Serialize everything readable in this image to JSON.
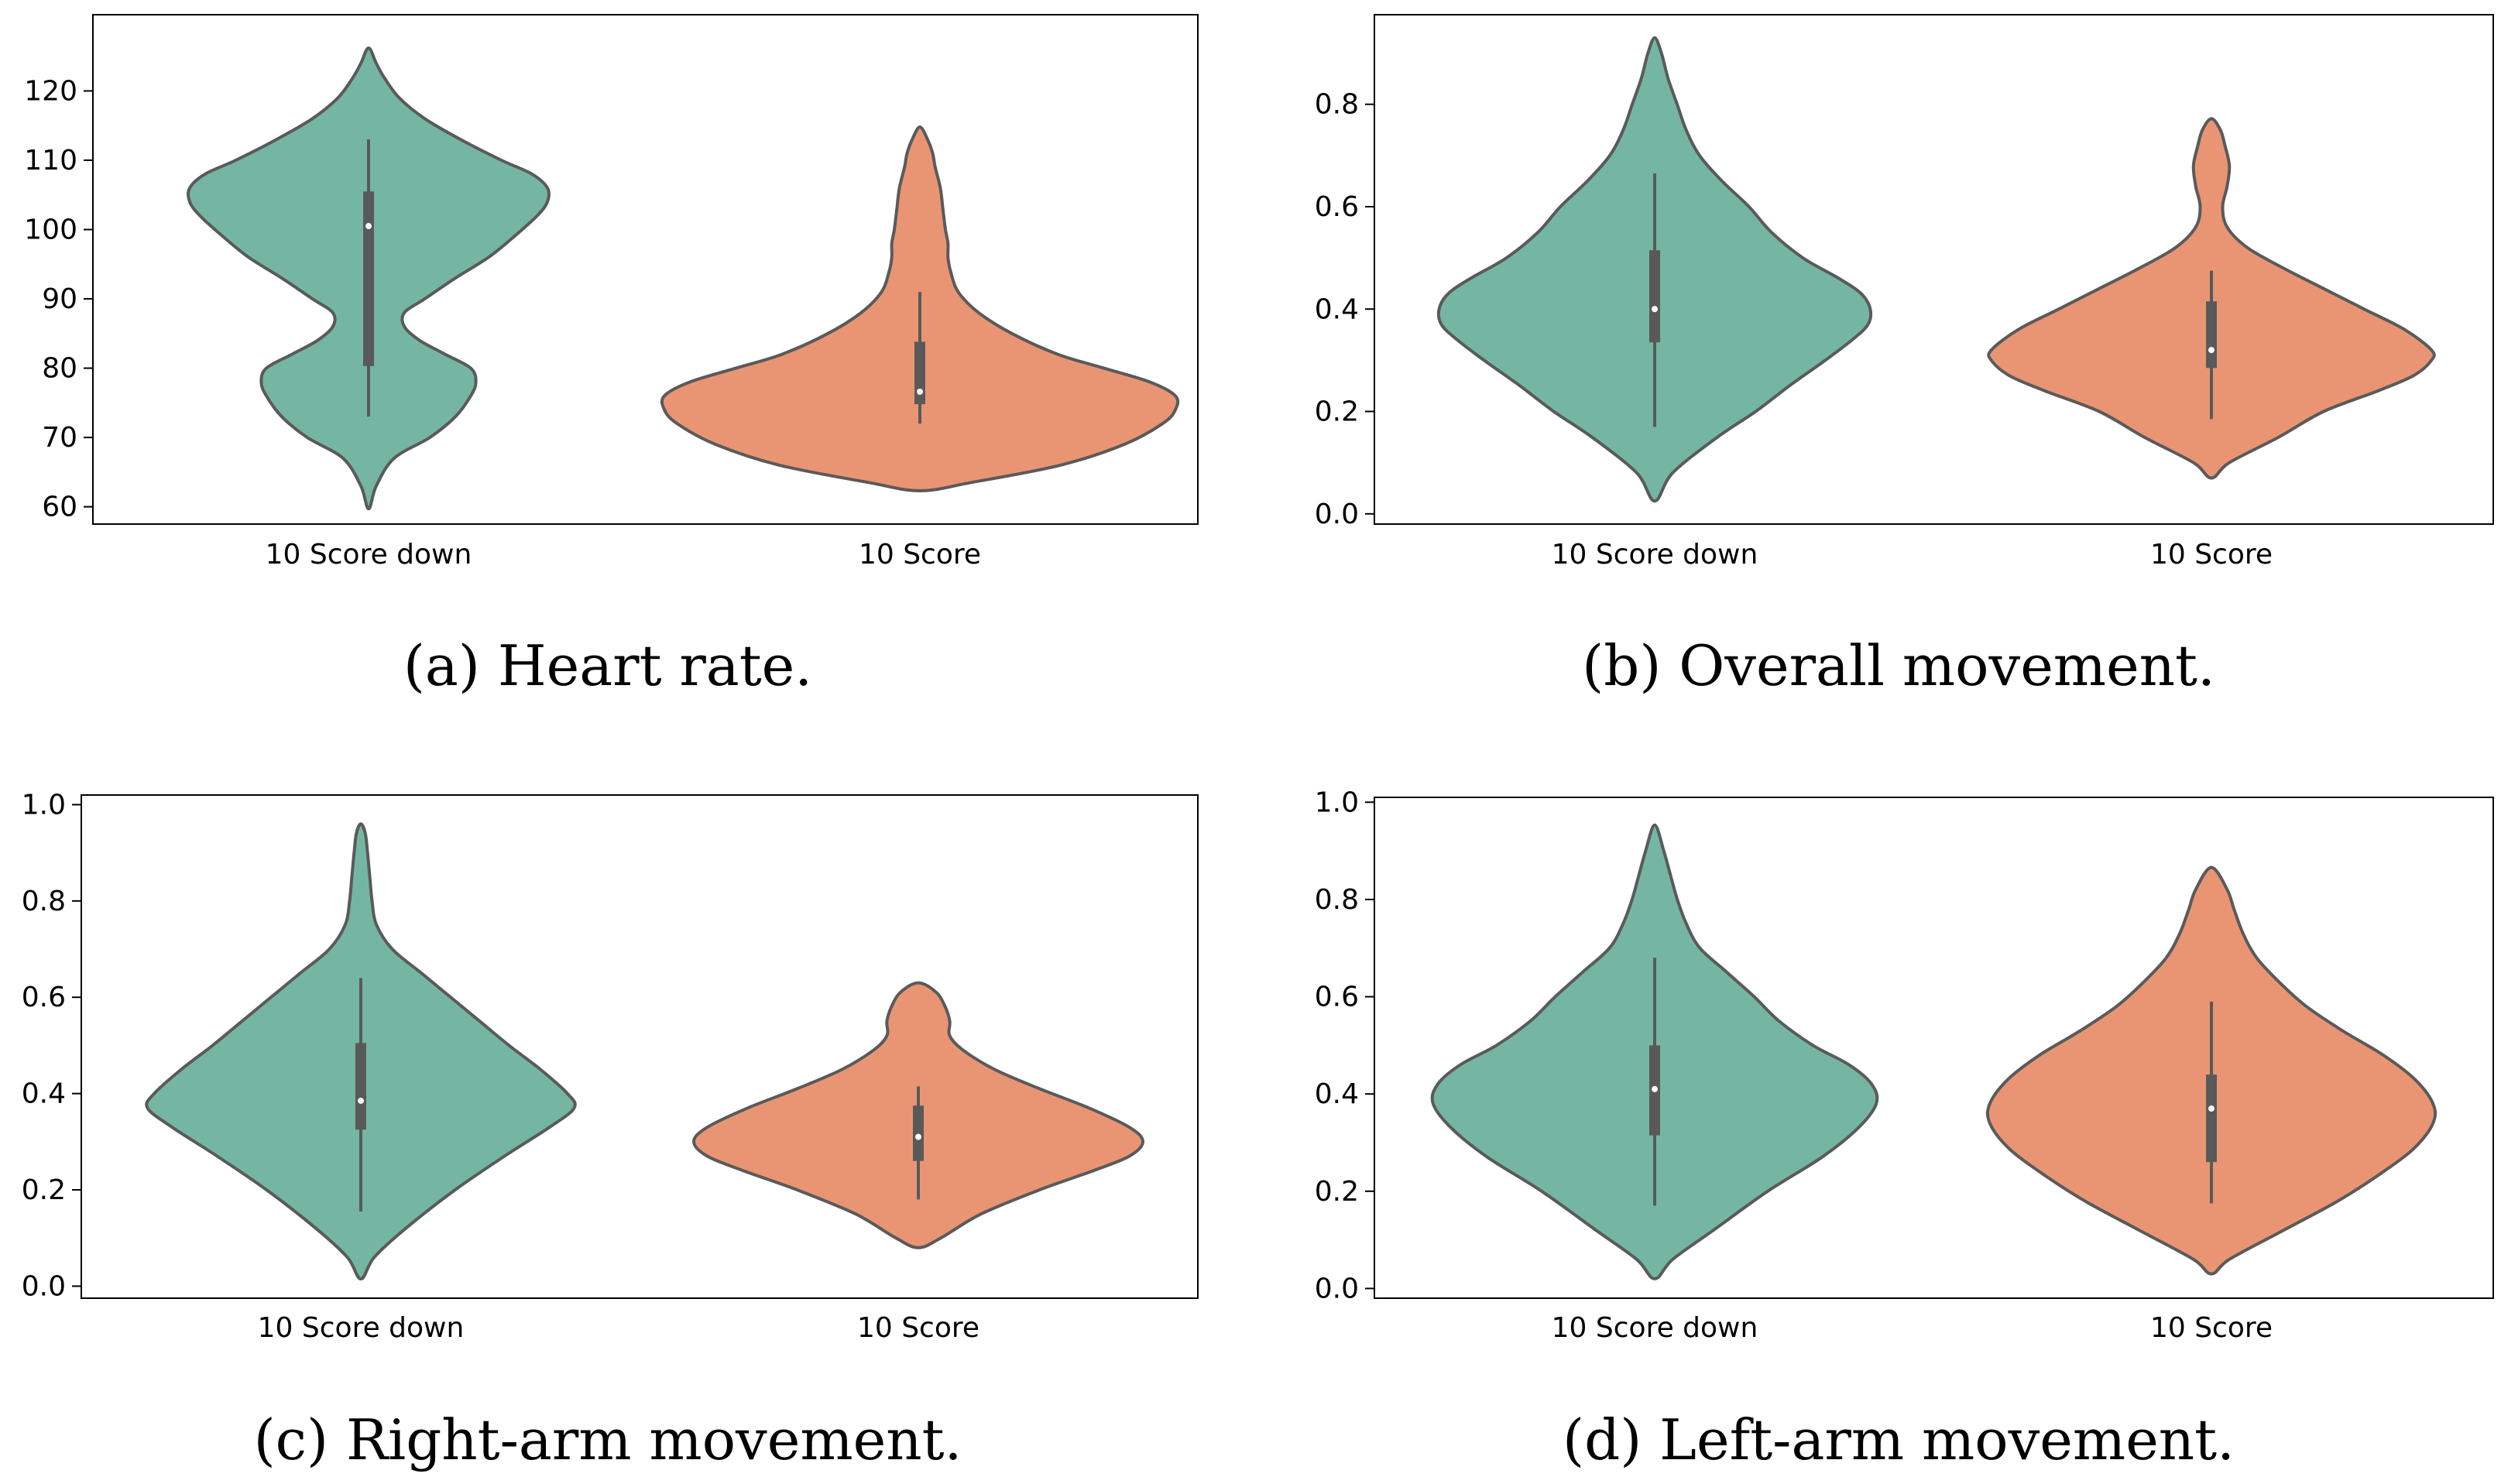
{
  "colors": {
    "green": "#74b6a2",
    "orange": "#e99574",
    "outline": "#5a5a5a",
    "box": "#595959"
  },
  "chart_data": [
    {
      "type": "violin",
      "caption_letter": "a",
      "caption_text": "Heart rate.",
      "categories": [
        "10 Score down",
        "10 Score"
      ],
      "ylim": [
        57.5,
        131
      ],
      "yticks": [
        60,
        70,
        80,
        90,
        100,
        110,
        120
      ],
      "ytick_labels": [
        "60",
        "70",
        "80",
        "90",
        "100",
        "110",
        "120"
      ],
      "violins": [
        {
          "name": "10 Score down",
          "color": "#74b6a2",
          "profile": [
            [
              59.7,
              0
            ],
            [
              63,
              0.03
            ],
            [
              67,
              0.1
            ],
            [
              70,
              0.24
            ],
            [
              73,
              0.34
            ],
            [
              76,
              0.4
            ],
            [
              78,
              0.42
            ],
            [
              80,
              0.4
            ],
            [
              82,
              0.3
            ],
            [
              84,
              0.2
            ],
            [
              86,
              0.14
            ],
            [
              88,
              0.14
            ],
            [
              90,
              0.22
            ],
            [
              93,
              0.34
            ],
            [
              96,
              0.47
            ],
            [
              99,
              0.57
            ],
            [
              102,
              0.66
            ],
            [
              104,
              0.7
            ],
            [
              106,
              0.7
            ],
            [
              108,
              0.64
            ],
            [
              110,
              0.52
            ],
            [
              113,
              0.36
            ],
            [
              116,
              0.22
            ],
            [
              119,
              0.12
            ],
            [
              122,
              0.06
            ],
            [
              124,
              0.03
            ],
            [
              126.2,
              0
            ]
          ],
          "q1": 80.3,
          "median": 100.5,
          "q3": 105.5,
          "whisker_low": 73,
          "whisker_high": 113
        },
        {
          "name": "10 Score",
          "color": "#e99574",
          "profile": [
            [
              62.3,
              0
            ],
            [
              63.5,
              0.2
            ],
            [
              66,
              0.55
            ],
            [
              69,
              0.8
            ],
            [
              72,
              0.95
            ],
            [
              74,
              1.0
            ],
            [
              76,
              1.0
            ],
            [
              78,
              0.9
            ],
            [
              80,
              0.72
            ],
            [
              82,
              0.54
            ],
            [
              85,
              0.36
            ],
            [
              88,
              0.23
            ],
            [
              91,
              0.15
            ],
            [
              94,
              0.12
            ],
            [
              96,
              0.11
            ],
            [
              98,
              0.11
            ],
            [
              100,
              0.1
            ],
            [
              103,
              0.09
            ],
            [
              106,
              0.08
            ],
            [
              109,
              0.06
            ],
            [
              111,
              0.05
            ],
            [
              113,
              0.03
            ],
            [
              114.8,
              0
            ]
          ],
          "q1": 74.8,
          "median": 76.6,
          "q3": 83.8,
          "whisker_low": 72,
          "whisker_high": 91
        }
      ]
    },
    {
      "type": "violin",
      "caption_letter": "b",
      "caption_text": "Overall movement.",
      "categories": [
        "10 Score down",
        "10 Score"
      ],
      "ylim": [
        -0.02,
        0.975
      ],
      "yticks": [
        0.0,
        0.2,
        0.4,
        0.6,
        0.8
      ],
      "ytick_labels": [
        "0.0",
        "0.2",
        "0.4",
        "0.6",
        "0.8"
      ],
      "violins": [
        {
          "name": "10 Score down",
          "color": "#74b6a2",
          "profile": [
            [
              0.025,
              0
            ],
            [
              0.08,
              0.08
            ],
            [
              0.15,
              0.28
            ],
            [
              0.2,
              0.45
            ],
            [
              0.25,
              0.6
            ],
            [
              0.3,
              0.76
            ],
            [
              0.34,
              0.88
            ],
            [
              0.37,
              0.95
            ],
            [
              0.4,
              0.96
            ],
            [
              0.43,
              0.92
            ],
            [
              0.46,
              0.82
            ],
            [
              0.5,
              0.66
            ],
            [
              0.55,
              0.52
            ],
            [
              0.6,
              0.42
            ],
            [
              0.65,
              0.3
            ],
            [
              0.7,
              0.2
            ],
            [
              0.75,
              0.14
            ],
            [
              0.8,
              0.1
            ],
            [
              0.85,
              0.06
            ],
            [
              0.9,
              0.03
            ],
            [
              0.93,
              0
            ]
          ],
          "q1": 0.335,
          "median": 0.4,
          "q3": 0.515,
          "whisker_low": 0.17,
          "whisker_high": 0.665
        },
        {
          "name": "10 Score",
          "color": "#e99574",
          "profile": [
            [
              0.07,
              0
            ],
            [
              0.1,
              0.08
            ],
            [
              0.15,
              0.3
            ],
            [
              0.2,
              0.5
            ],
            [
              0.24,
              0.74
            ],
            [
              0.27,
              0.9
            ],
            [
              0.3,
              0.98
            ],
            [
              0.32,
              0.98
            ],
            [
              0.36,
              0.86
            ],
            [
              0.4,
              0.68
            ],
            [
              0.44,
              0.5
            ],
            [
              0.48,
              0.32
            ],
            [
              0.52,
              0.16
            ],
            [
              0.56,
              0.07
            ],
            [
              0.6,
              0.05
            ],
            [
              0.64,
              0.07
            ],
            [
              0.68,
              0.08
            ],
            [
              0.72,
              0.06
            ],
            [
              0.75,
              0.04
            ],
            [
              0.772,
              0
            ]
          ],
          "q1": 0.285,
          "median": 0.32,
          "q3": 0.415,
          "whisker_low": 0.185,
          "whisker_high": 0.475
        }
      ]
    },
    {
      "type": "violin",
      "caption_letter": "c",
      "caption_text": "Right-arm movement.",
      "categories": [
        "10 Score down",
        "10 Score"
      ],
      "ylim": [
        -0.025,
        1.02
      ],
      "yticks": [
        0.0,
        0.2,
        0.4,
        0.6,
        0.8,
        1.0
      ],
      "ytick_labels": [
        "0.0",
        "0.2",
        "0.4",
        "0.6",
        "0.8",
        "1.0"
      ],
      "violins": [
        {
          "name": "10 Score down",
          "color": "#74b6a2",
          "profile": [
            [
              0.015,
              0
            ],
            [
              0.06,
              0.06
            ],
            [
              0.12,
              0.2
            ],
            [
              0.2,
              0.42
            ],
            [
              0.27,
              0.64
            ],
            [
              0.33,
              0.84
            ],
            [
              0.37,
              0.95
            ],
            [
              0.4,
              0.92
            ],
            [
              0.45,
              0.8
            ],
            [
              0.5,
              0.66
            ],
            [
              0.55,
              0.53
            ],
            [
              0.6,
              0.4
            ],
            [
              0.65,
              0.27
            ],
            [
              0.7,
              0.14
            ],
            [
              0.75,
              0.07
            ],
            [
              0.8,
              0.05
            ],
            [
              0.85,
              0.04
            ],
            [
              0.9,
              0.03
            ],
            [
              0.94,
              0.02
            ],
            [
              0.96,
              0
            ]
          ],
          "q1": 0.325,
          "median": 0.385,
          "q3": 0.505,
          "whisker_low": 0.155,
          "whisker_high": 0.64
        },
        {
          "name": "10 Score",
          "color": "#e99574",
          "profile": [
            [
              0.08,
              0
            ],
            [
              0.1,
              0.1
            ],
            [
              0.15,
              0.28
            ],
            [
              0.2,
              0.54
            ],
            [
              0.24,
              0.78
            ],
            [
              0.27,
              0.94
            ],
            [
              0.3,
              1.0
            ],
            [
              0.33,
              0.94
            ],
            [
              0.37,
              0.76
            ],
            [
              0.41,
              0.54
            ],
            [
              0.45,
              0.34
            ],
            [
              0.49,
              0.2
            ],
            [
              0.52,
              0.14
            ],
            [
              0.55,
              0.14
            ],
            [
              0.58,
              0.12
            ],
            [
              0.61,
              0.08
            ],
            [
              0.63,
              0
            ]
          ],
          "q1": 0.26,
          "median": 0.31,
          "q3": 0.375,
          "whisker_low": 0.18,
          "whisker_high": 0.415
        }
      ]
    },
    {
      "type": "violin",
      "caption_letter": "d",
      "caption_text": "Left-arm movement.",
      "categories": [
        "10 Score down",
        "10 Score"
      ],
      "ylim": [
        -0.02,
        1.01
      ],
      "yticks": [
        0.0,
        0.2,
        0.4,
        0.6,
        0.8,
        1.0
      ],
      "ytick_labels": [
        "0.0",
        "0.2",
        "0.4",
        "0.6",
        "0.8",
        "1.0"
      ],
      "violins": [
        {
          "name": "10 Score down",
          "color": "#74b6a2",
          "profile": [
            [
              0.02,
              0
            ],
            [
              0.06,
              0.08
            ],
            [
              0.12,
              0.26
            ],
            [
              0.2,
              0.5
            ],
            [
              0.27,
              0.74
            ],
            [
              0.33,
              0.9
            ],
            [
              0.38,
              0.98
            ],
            [
              0.42,
              0.96
            ],
            [
              0.46,
              0.86
            ],
            [
              0.5,
              0.7
            ],
            [
              0.55,
              0.55
            ],
            [
              0.6,
              0.44
            ],
            [
              0.65,
              0.32
            ],
            [
              0.7,
              0.2
            ],
            [
              0.75,
              0.14
            ],
            [
              0.8,
              0.1
            ],
            [
              0.85,
              0.07
            ],
            [
              0.9,
              0.04
            ],
            [
              0.953,
              0
            ]
          ],
          "q1": 0.315,
          "median": 0.41,
          "q3": 0.5,
          "whisker_low": 0.17,
          "whisker_high": 0.68
        },
        {
          "name": "10 Score",
          "color": "#e99574",
          "profile": [
            [
              0.03,
              0
            ],
            [
              0.06,
              0.08
            ],
            [
              0.12,
              0.32
            ],
            [
              0.18,
              0.56
            ],
            [
              0.24,
              0.76
            ],
            [
              0.29,
              0.9
            ],
            [
              0.34,
              0.98
            ],
            [
              0.38,
              0.98
            ],
            [
              0.43,
              0.9
            ],
            [
              0.48,
              0.76
            ],
            [
              0.53,
              0.58
            ],
            [
              0.58,
              0.42
            ],
            [
              0.63,
              0.3
            ],
            [
              0.68,
              0.2
            ],
            [
              0.73,
              0.14
            ],
            [
              0.78,
              0.1
            ],
            [
              0.82,
              0.07
            ],
            [
              0.866,
              0
            ]
          ],
          "q1": 0.26,
          "median": 0.37,
          "q3": 0.44,
          "whisker_low": 0.175,
          "whisker_high": 0.59
        }
      ]
    }
  ]
}
